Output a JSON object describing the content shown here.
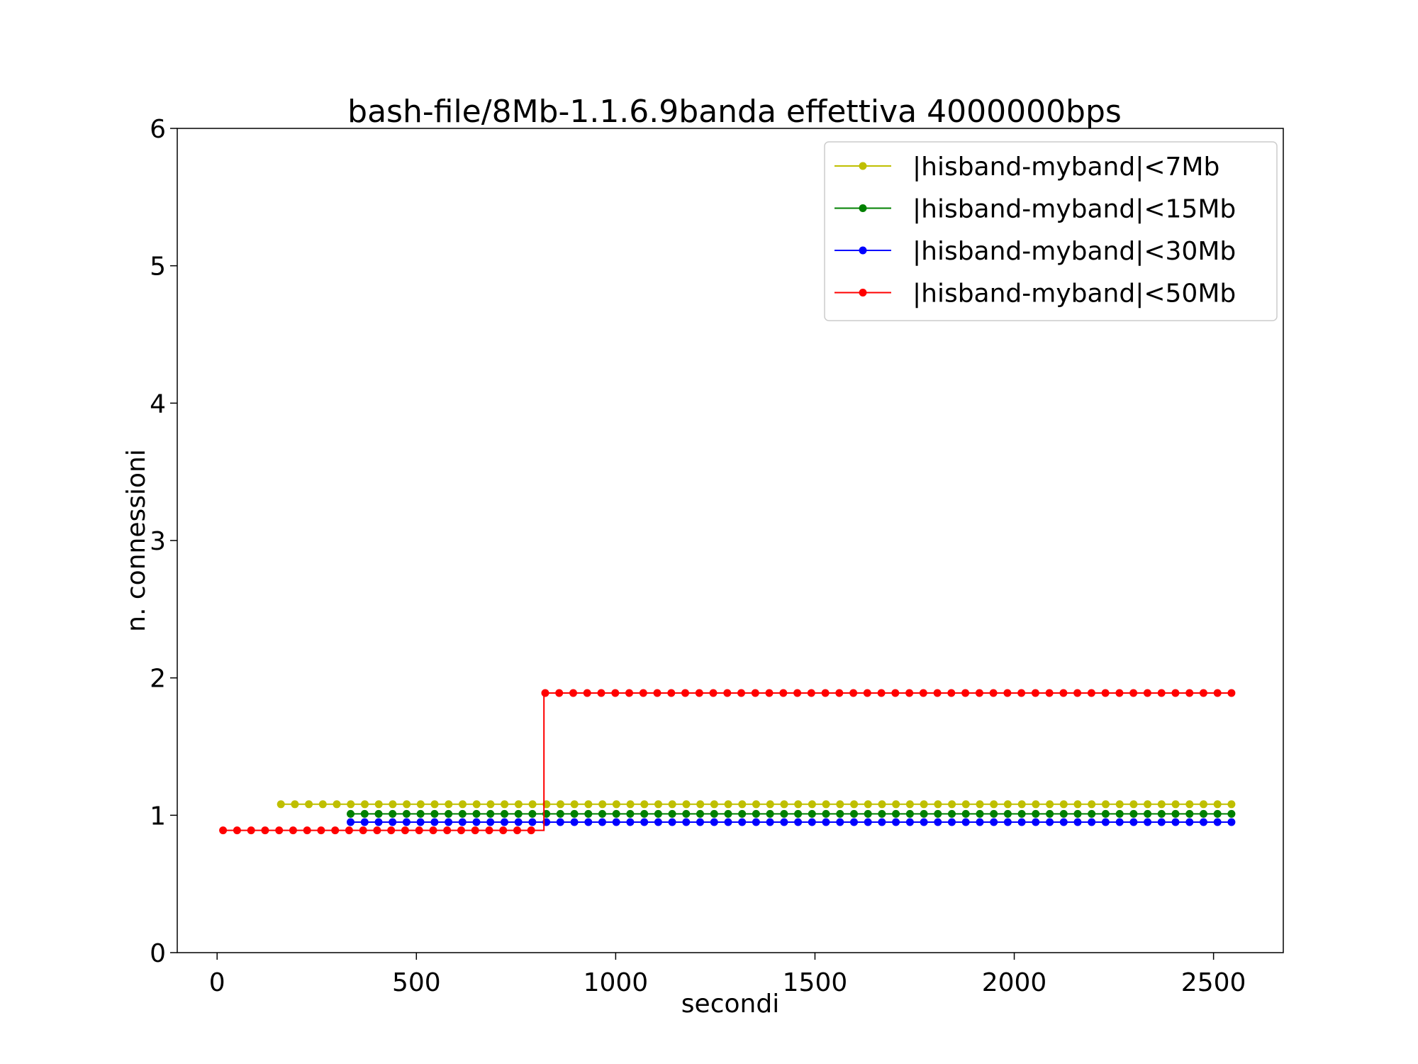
{
  "chart_data": {
    "type": "line",
    "title": "bash-file/8Mb-1.1.6.9banda effettiva 4000000bps",
    "xlabel": "secondi",
    "ylabel": "n. connessioni",
    "xlim": [
      -100,
      2675
    ],
    "ylim": [
      0,
      6
    ],
    "xticks": [
      0,
      500,
      1000,
      1500,
      2000,
      2500
    ],
    "yticks": [
      0,
      1,
      2,
      3,
      4,
      5,
      6
    ],
    "grid": false,
    "legend_position": "top-right",
    "marker": "circle",
    "series": [
      {
        "name": "|hisband-myband|<7Mb",
        "color": "#bfbf00",
        "x_start": 160,
        "x_end": 2545,
        "x_step": 35.1,
        "segments": [
          {
            "x": [
              160,
              2545
            ],
            "y": 1.08
          }
        ]
      },
      {
        "name": "|hisband-myband|<15Mb",
        "color": "#008000",
        "x_start": 335,
        "x_end": 2545,
        "x_step": 35.1,
        "segments": [
          {
            "x": [
              335,
              2545
            ],
            "y": 1.01
          }
        ]
      },
      {
        "name": "|hisband-myband|<30Mb",
        "color": "#0000ff",
        "x_start": 335,
        "x_end": 2545,
        "x_step": 35.1,
        "segments": [
          {
            "x": [
              335,
              2545
            ],
            "y": 0.95
          }
        ]
      },
      {
        "name": "|hisband-myband|<50Mb",
        "color": "#ff0000",
        "x_start": 15,
        "x_end": 2545,
        "x_step": 35.1,
        "segments": [
          {
            "x": [
              15,
              805
            ],
            "y": 0.89
          },
          {
            "x": [
              820,
              2545
            ],
            "y": 1.89
          }
        ]
      }
    ]
  }
}
